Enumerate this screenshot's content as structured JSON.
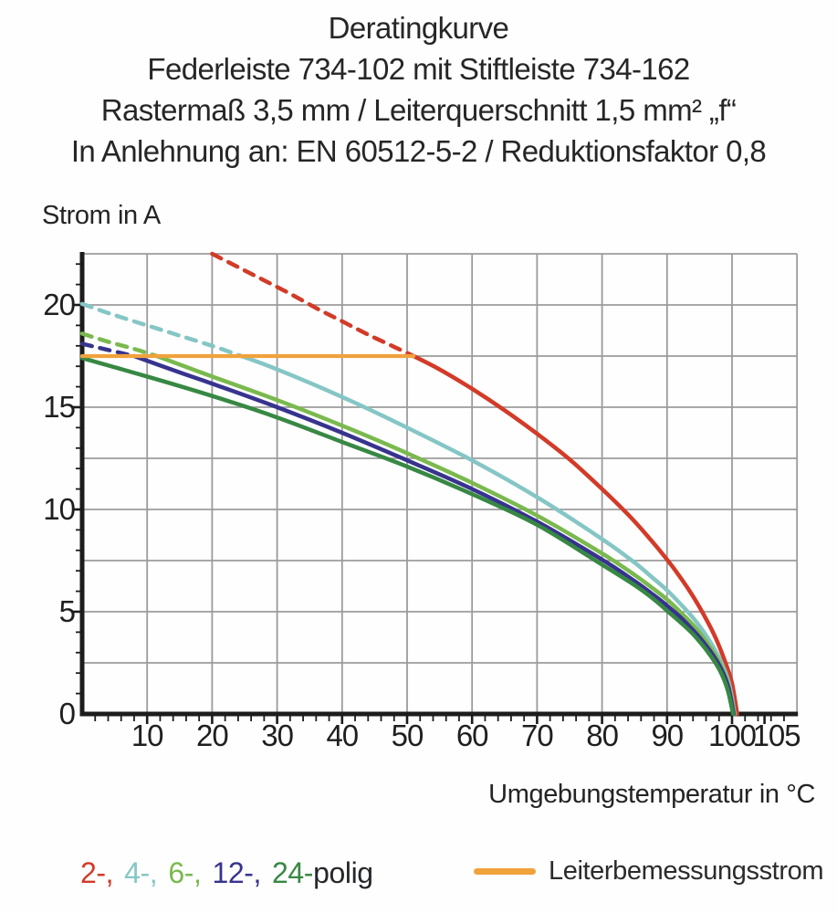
{
  "title": {
    "line1": "Deratingkurve",
    "line2": "Federleiste 734-102 mit Stiftleiste 734-162",
    "line3": "Rastermaß 3,5 mm / Leiterquerschnitt 1,5 mm² „f“",
    "line4": "In Anlehnung an: EN 60512-5-2 / Reduktionsfaktor 0,8"
  },
  "colors": {
    "background": "#fefefe",
    "grid": "#9b9b9b",
    "axis": "#1c1c1c",
    "tick_text": "#1f1f1f",
    "rated_orange": "#f0a23d"
  },
  "legend": {
    "pole_items": [
      {
        "text": "2-,",
        "color": "#d23b28"
      },
      {
        "text": "4-,",
        "color": "#85c6c5"
      },
      {
        "text": "6-,",
        "color": "#7ab94e"
      },
      {
        "text": "12-,",
        "color": "#37338e"
      },
      {
        "text": "24-",
        "color": "#378843"
      },
      {
        "text": "polig",
        "color": "#26272b"
      }
    ],
    "rated_label": "Leiterbemessungsstrom"
  },
  "chart_data": {
    "type": "line",
    "title": "Deratingkurve Federleiste 734-102 mit Stiftleiste 734-162",
    "xlabel": "Umgebungstemperatur in °C",
    "ylabel": "Strom in A",
    "xlim": [
      0,
      110
    ],
    "ylim": [
      0,
      22.5
    ],
    "grid": true,
    "x_grid_step": 10,
    "y_grid_step": 2.5,
    "x_major_tick_labels": [
      10,
      20,
      30,
      40,
      50,
      60,
      70,
      80,
      90,
      100,
      105
    ],
    "y_major_tick_labels": [
      0,
      5,
      10,
      15,
      20
    ],
    "x_minor_tick_step": 2,
    "y_minor_tick_step": 1,
    "rated_current": {
      "label": "Leiterbemessungsstrom",
      "value_A": 17.5,
      "x_extent_C": [
        0,
        51
      ],
      "color": "#f0a23d"
    },
    "dashed_above_A": 17.5,
    "series": [
      {
        "name": "2-polig",
        "color": "#d23b28",
        "dashed": [
          [
            20,
            22.5
          ],
          [
            24,
            21.85
          ],
          [
            28,
            21.2
          ],
          [
            32,
            20.55
          ],
          [
            36,
            19.85
          ],
          [
            40,
            19.2
          ],
          [
            44,
            18.55
          ],
          [
            48,
            17.95
          ],
          [
            51,
            17.5
          ]
        ],
        "solid": [
          [
            51,
            17.5
          ],
          [
            55,
            16.85
          ],
          [
            60,
            15.9
          ],
          [
            65,
            14.85
          ],
          [
            70,
            13.7
          ],
          [
            75,
            12.45
          ],
          [
            80,
            11.0
          ],
          [
            84,
            9.75
          ],
          [
            87,
            8.7
          ],
          [
            90,
            7.55
          ],
          [
            92,
            6.7
          ],
          [
            94,
            5.75
          ],
          [
            96,
            4.65
          ],
          [
            97.5,
            3.7
          ],
          [
            99,
            2.5
          ],
          [
            100,
            1.5
          ],
          [
            100.8,
            0
          ]
        ]
      },
      {
        "name": "4-polig",
        "color": "#85c6c5",
        "dashed": [
          [
            0,
            20.05
          ],
          [
            5,
            19.5
          ],
          [
            10,
            19.0
          ],
          [
            15,
            18.5
          ],
          [
            20,
            18.0
          ],
          [
            24.5,
            17.5
          ]
        ],
        "solid": [
          [
            24.5,
            17.5
          ],
          [
            30,
            16.85
          ],
          [
            40,
            15.5
          ],
          [
            50,
            14.0
          ],
          [
            60,
            12.4
          ],
          [
            70,
            10.6
          ],
          [
            80,
            8.55
          ],
          [
            85,
            7.4
          ],
          [
            88,
            6.6
          ],
          [
            90,
            6.05
          ],
          [
            92,
            5.4
          ],
          [
            94,
            4.7
          ],
          [
            96,
            3.85
          ],
          [
            98,
            2.75
          ],
          [
            99.5,
            1.55
          ],
          [
            100.4,
            0
          ]
        ]
      },
      {
        "name": "6-polig",
        "color": "#7ab94e",
        "dashed": [
          [
            0,
            18.6
          ],
          [
            4,
            18.2
          ],
          [
            8,
            17.85
          ],
          [
            11.5,
            17.5
          ]
        ],
        "solid": [
          [
            11.5,
            17.5
          ],
          [
            20,
            16.5
          ],
          [
            30,
            15.35
          ],
          [
            40,
            14.1
          ],
          [
            50,
            12.75
          ],
          [
            60,
            11.3
          ],
          [
            70,
            9.7
          ],
          [
            80,
            7.85
          ],
          [
            85,
            6.8
          ],
          [
            88,
            6.1
          ],
          [
            90,
            5.6
          ],
          [
            92,
            5.0
          ],
          [
            94,
            4.35
          ],
          [
            96,
            3.55
          ],
          [
            98,
            2.55
          ],
          [
            99.4,
            1.45
          ],
          [
            100.3,
            0
          ]
        ]
      },
      {
        "name": "12-polig",
        "color": "#37338e",
        "dashed": [
          [
            0,
            18.1
          ],
          [
            4,
            17.8
          ],
          [
            8,
            17.5
          ]
        ],
        "solid": [
          [
            8,
            17.5
          ],
          [
            15,
            16.7
          ],
          [
            20,
            16.15
          ],
          [
            30,
            15.0
          ],
          [
            40,
            13.75
          ],
          [
            50,
            12.4
          ],
          [
            60,
            11.0
          ],
          [
            70,
            9.4
          ],
          [
            80,
            7.55
          ],
          [
            85,
            6.5
          ],
          [
            88,
            5.8
          ],
          [
            90,
            5.3
          ],
          [
            92,
            4.75
          ],
          [
            94,
            4.1
          ],
          [
            96,
            3.35
          ],
          [
            98,
            2.4
          ],
          [
            99.4,
            1.35
          ],
          [
            100.25,
            0
          ]
        ]
      },
      {
        "name": "24-polig",
        "color": "#378843",
        "dashed": [],
        "solid": [
          [
            0,
            17.4
          ],
          [
            10,
            16.5
          ],
          [
            20,
            15.55
          ],
          [
            30,
            14.5
          ],
          [
            40,
            13.3
          ],
          [
            50,
            12.1
          ],
          [
            60,
            10.75
          ],
          [
            70,
            9.25
          ],
          [
            80,
            7.3
          ],
          [
            85,
            6.3
          ],
          [
            88,
            5.6
          ],
          [
            90,
            5.05
          ],
          [
            92,
            4.5
          ],
          [
            94,
            3.9
          ],
          [
            96,
            3.15
          ],
          [
            98,
            2.2
          ],
          [
            99.3,
            1.2
          ],
          [
            100.15,
            0
          ]
        ]
      }
    ]
  }
}
